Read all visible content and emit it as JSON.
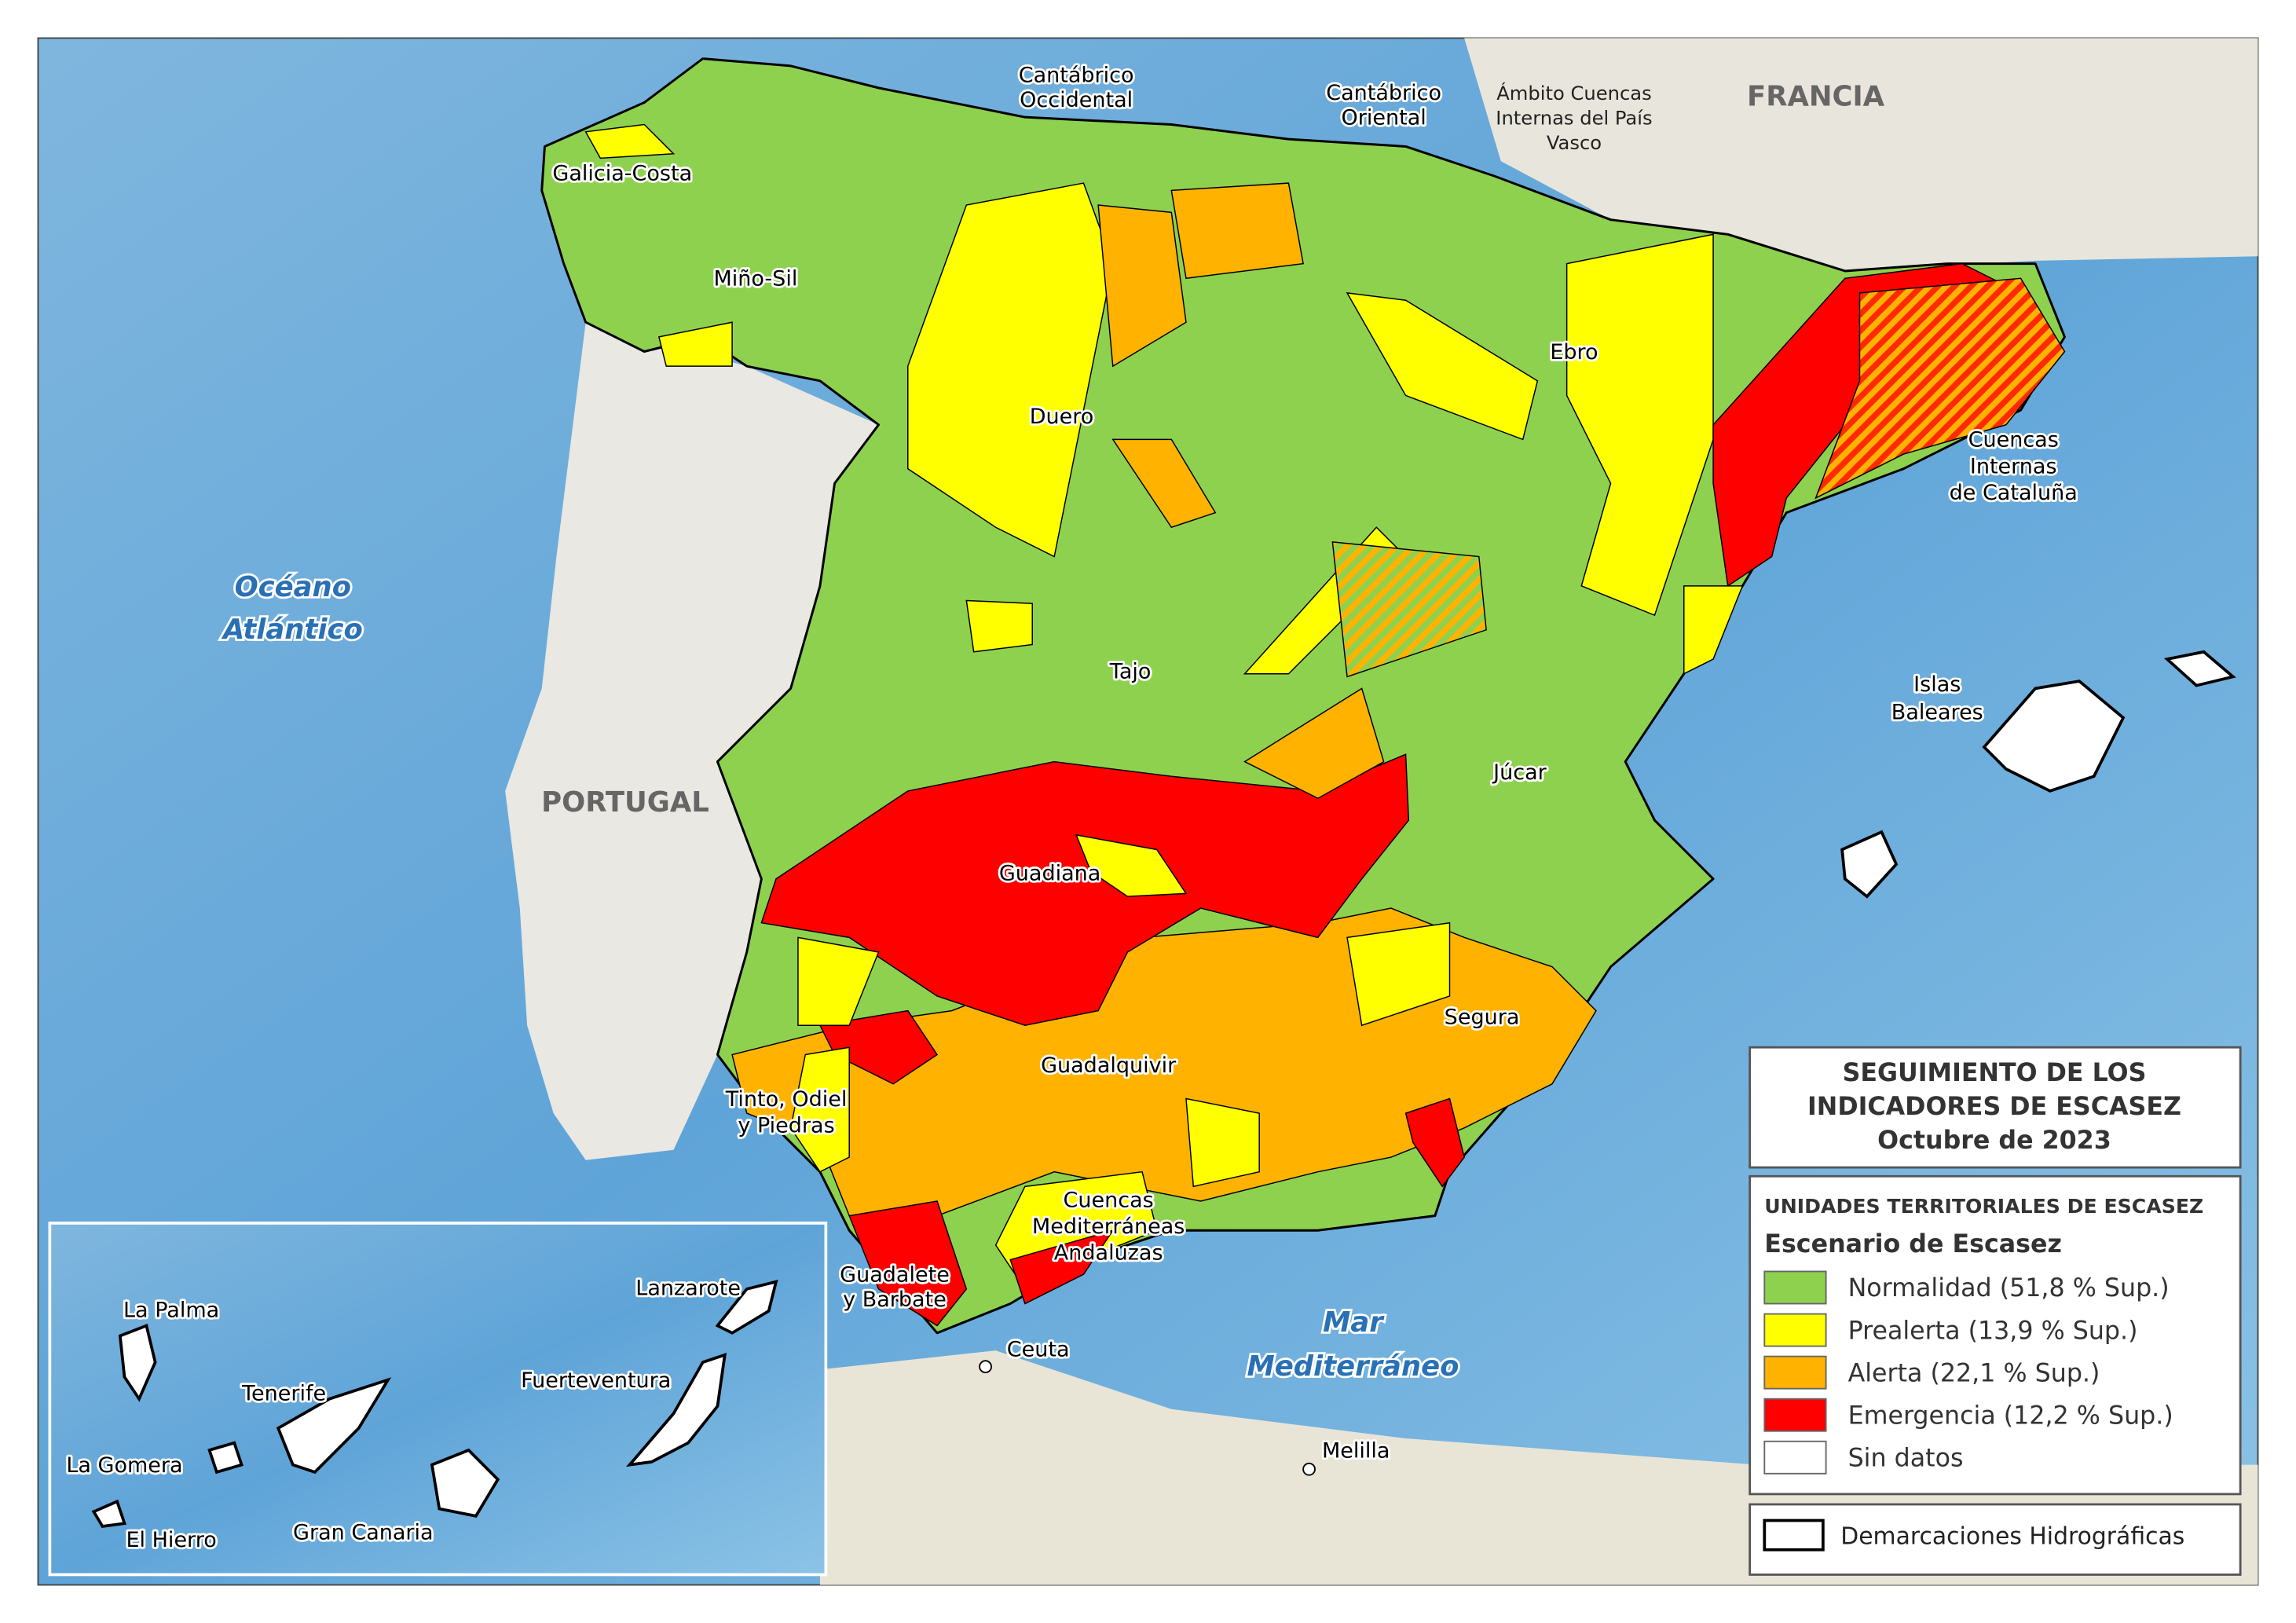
{
  "map_labels": [
    {
      "lines": [
        "Cantábrico",
        "Occidental"
      ]
    },
    {
      "lines": [
        "Cantábrico",
        "Oriental"
      ]
    },
    {
      "lines": [
        "Ámbito Cuencas",
        "Internas del País",
        "Vasco"
      ]
    },
    {
      "lines": [
        "FRANCIA"
      ]
    },
    {
      "lines": [
        "Galicia-Costa"
      ]
    },
    {
      "lines": [
        "Miño-Sil"
      ]
    },
    {
      "lines": [
        "Ebro"
      ]
    },
    {
      "lines": [
        "Duero"
      ]
    },
    {
      "lines": [
        "Cuencas",
        "Internas",
        "de Cataluña"
      ]
    },
    {
      "lines": [
        "Océano",
        "Atlántico"
      ]
    },
    {
      "lines": [
        "Tajo"
      ]
    },
    {
      "lines": [
        "Islas",
        "Baleares"
      ]
    },
    {
      "lines": [
        "PORTUGAL"
      ]
    },
    {
      "lines": [
        "Júcar"
      ]
    },
    {
      "lines": [
        "Guadiana"
      ]
    },
    {
      "lines": [
        "Segura"
      ]
    },
    {
      "lines": [
        "Guadalquivir"
      ]
    },
    {
      "lines": [
        "Tinto, Odiel",
        "y Piedras"
      ]
    },
    {
      "lines": [
        "Cuencas",
        "Mediterráneas",
        "Andaluzas"
      ]
    },
    {
      "lines": [
        "Guadalete",
        "y Barbate"
      ]
    },
    {
      "lines": [
        "Ceuta"
      ]
    },
    {
      "lines": [
        "Mar",
        "Mediterráneo"
      ]
    },
    {
      "lines": [
        "Melilla"
      ]
    },
    {
      "lines": [
        "Lanzarote"
      ]
    },
    {
      "lines": [
        "La Palma"
      ]
    },
    {
      "lines": [
        "Tenerife"
      ]
    },
    {
      "lines": [
        "Fuerteventura"
      ]
    },
    {
      "lines": [
        "La Gomera"
      ]
    },
    {
      "lines": [
        "El Hierro"
      ]
    },
    {
      "lines": [
        "Gran Canaria"
      ]
    }
  ],
  "legend": {
    "title": [
      "SEGUIMIENTO DE LOS",
      "INDICADORES DE ESCASEZ",
      "Octubre de 2023"
    ],
    "heading": "UNIDADES TERRITORIALES DE ESCASEZ",
    "subheading": "Escenario de Escasez",
    "items": [
      {
        "label": "Normalidad (51,8 % Sup.)",
        "color": "#8ed14f"
      },
      {
        "label": "Prealerta (13,9 % Sup.)",
        "color": "#ffff00"
      },
      {
        "label": "Alerta (22,1 % Sup.)",
        "color": "#ffb300"
      },
      {
        "label": "Emergencia (12,2 % Sup.)",
        "color": "#ff0000"
      },
      {
        "label": "Sin datos",
        "color": "#ffffff"
      }
    ],
    "boundary": "Demarcaciones Hidrográficas"
  }
}
